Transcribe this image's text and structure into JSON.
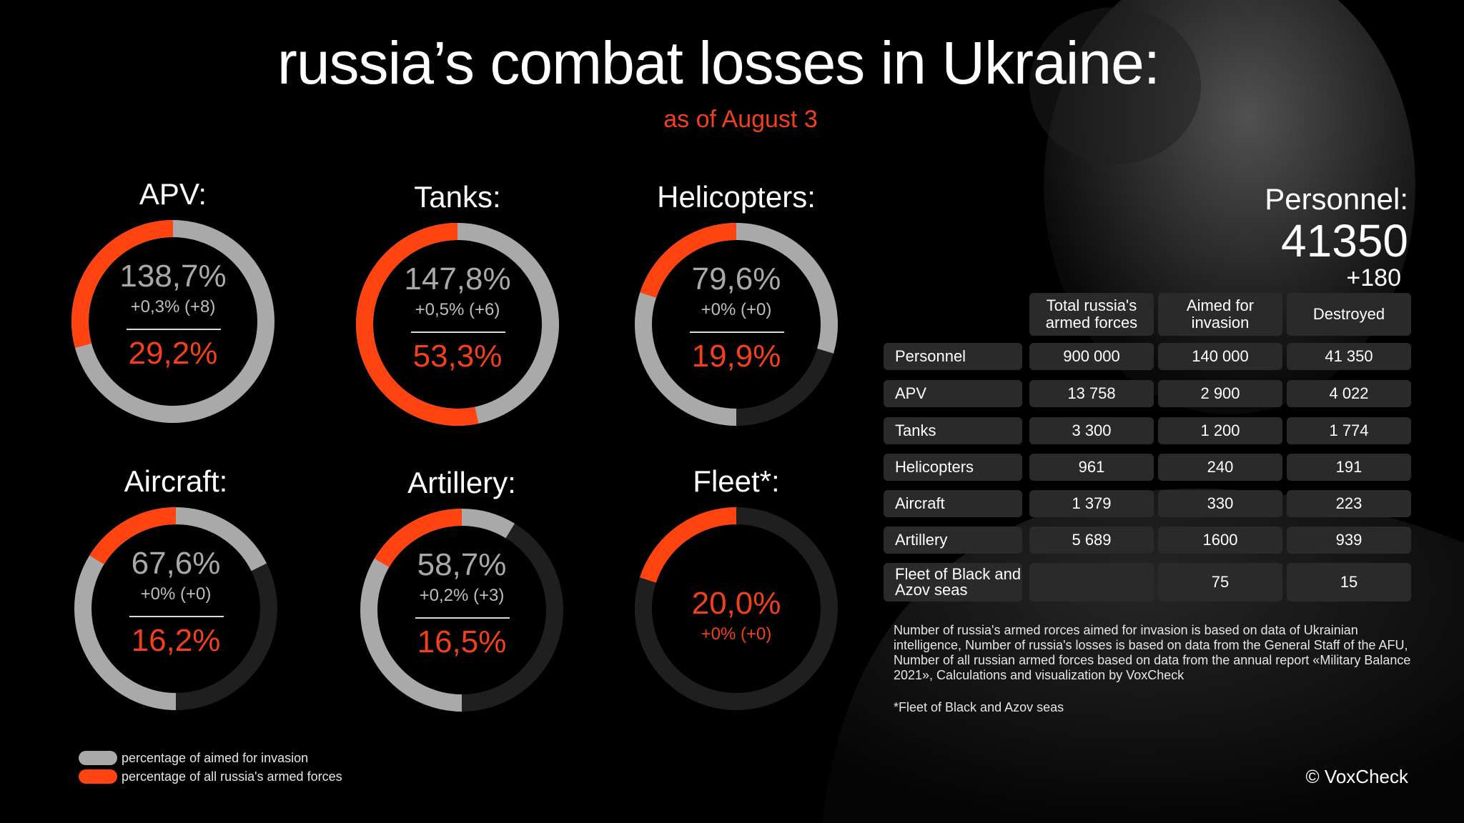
{
  "title": "russia’s combat losses in Ukraine:",
  "subtitle": "as of August 3",
  "colors": {
    "grey": "#a9a9a9",
    "orange": "#ff4411",
    "track": "#1f1f1f",
    "accent_text": "#f2401c"
  },
  "chart_data": {
    "type": "donut-gauges",
    "gauges": [
      {
        "name": "APV:",
        "pct_aimed": "138,7%",
        "change": "+0,3% (+8)",
        "pct_all": "29,2%",
        "aimed_value": 1.387,
        "all_value": 0.292
      },
      {
        "name": "Tanks:",
        "pct_aimed": "147,8%",
        "change": "+0,5% (+6)",
        "pct_all": "53,3%",
        "aimed_value": 1.478,
        "all_value": 0.533
      },
      {
        "name": "Helicopters:",
        "pct_aimed": "79,6%",
        "change": "+0% (+0)",
        "pct_all": "19,9%",
        "aimed_value": 0.796,
        "all_value": 0.199
      },
      {
        "name": "Aircraft:",
        "pct_aimed": "67,6%",
        "change": "+0% (+0)",
        "pct_all": "16,2%",
        "aimed_value": 0.676,
        "all_value": 0.162
      },
      {
        "name": "Artillery:",
        "pct_aimed": "58,7%",
        "change": "+0,2% (+3)",
        "pct_all": "16,5%",
        "aimed_value": 0.587,
        "all_value": 0.165
      },
      {
        "name": "Fleet*:",
        "pct_aimed": "",
        "change": "+0% (+0)",
        "pct_all": "20,0%",
        "aimed_value": null,
        "all_value": 0.2
      }
    ],
    "legend": [
      {
        "label": "percentage of aimed for invasion",
        "color": "#a9a9a9"
      },
      {
        "label": "percentage of all russia's armed forces",
        "color": "#ff4411"
      }
    ]
  },
  "personnel": {
    "label": "Personnel:",
    "value": "41350",
    "delta": "+180"
  },
  "table": {
    "headers": [
      "Total russia's armed forces",
      "Aimed for invasion",
      "Destroyed"
    ],
    "rows": [
      {
        "label": "Personnel",
        "total": "900 000",
        "aimed": "140 000",
        "destroyed": "41 350"
      },
      {
        "label": "APV",
        "total": "13 758",
        "aimed": "2 900",
        "destroyed": "4 022"
      },
      {
        "label": "Tanks",
        "total": "3 300",
        "aimed": "1 200",
        "destroyed": "1 774"
      },
      {
        "label": "Helicopters",
        "total": "961",
        "aimed": "240",
        "destroyed": "191"
      },
      {
        "label": "Aircraft",
        "total": "1 379",
        "aimed": "330",
        "destroyed": "223"
      },
      {
        "label": "Artillery",
        "total": "5 689",
        "aimed": "1600",
        "destroyed": "939"
      },
      {
        "label": "Fleet of Black and Azov seas",
        "total": "",
        "aimed": "75",
        "destroyed": "15"
      }
    ]
  },
  "notes": "Number of russia's armed rorces aimed for invasion  is based on data of Ukrainian intelligence, Number of russia's losses is based on data from the General Staff of the AFU, Number of all russian armed forces based on  data from the annual report «Military Balance 2021», Calculations and visualization by VoxCheck",
  "footnote": "*Fleet of Black and Azov seas",
  "credit": "© VoxCheck"
}
